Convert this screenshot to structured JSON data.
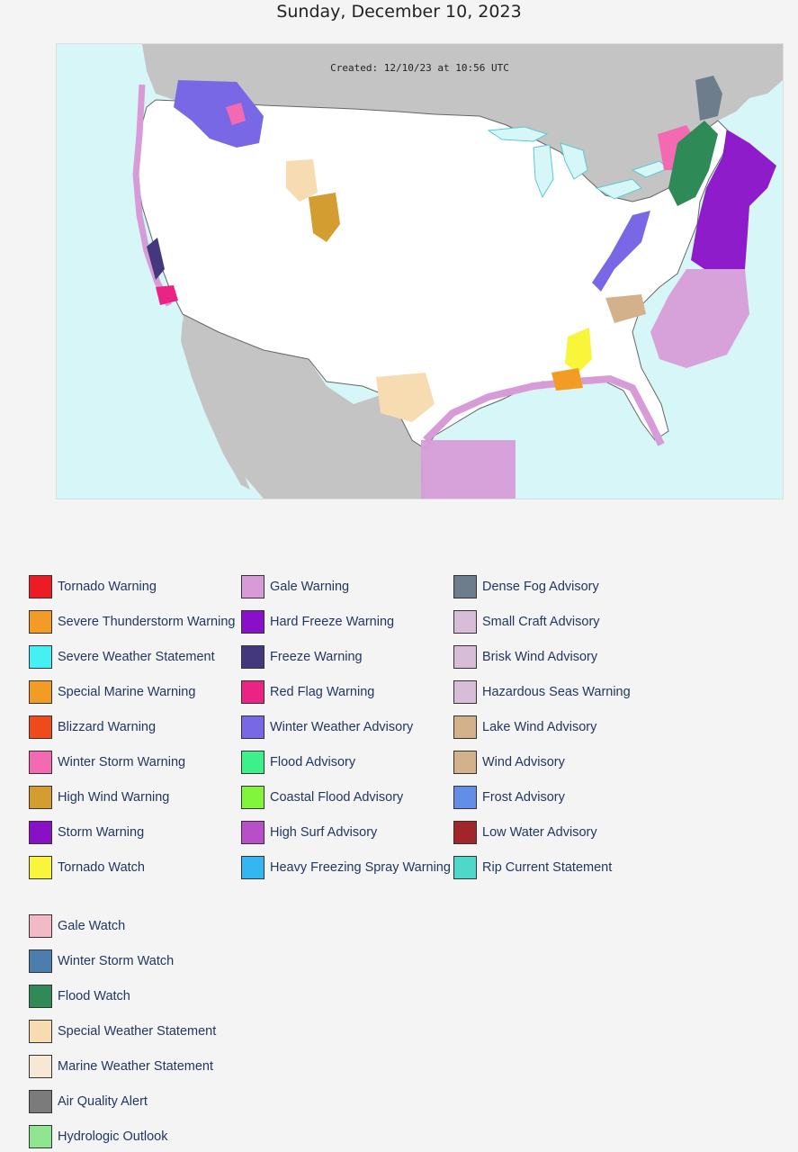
{
  "page": {
    "title": "Sunday, December 10, 2023",
    "map_created": "Created: 12/10/23 at 10:56 UTC"
  },
  "colors": {
    "ocean": "#d7f6f8",
    "land_us": "#ffffff",
    "land_other": "#c4c4c4",
    "zone_lines": "#5cc9d0"
  },
  "legend": {
    "columns": [
      [
        {
          "label": "Tornado Warning",
          "color": "#ed1c24"
        },
        {
          "label": "Severe Thunderstorm Warning",
          "color": "#f39c25"
        },
        {
          "label": "Severe Weather Statement",
          "color": "#44f0f3"
        },
        {
          "label": "Special Marine Warning",
          "color": "#f39c25"
        },
        {
          "label": "Blizzard Warning",
          "color": "#ee4a1c"
        },
        {
          "label": "Winter Storm Warning",
          "color": "#f36ab3"
        },
        {
          "label": "High Wind Warning",
          "color": "#d39d32"
        },
        {
          "label": "Storm Warning",
          "color": "#8a10c8"
        },
        {
          "label": "Tornado Watch",
          "color": "#f8f53a"
        }
      ],
      [
        {
          "label": "Gale Warning",
          "color": "#d79cd8"
        },
        {
          "label": "Hard Freeze Warning",
          "color": "#8a0fc8"
        },
        {
          "label": "Freeze Warning",
          "color": "#43377e"
        },
        {
          "label": "Red Flag Warning",
          "color": "#eb2384"
        },
        {
          "label": "Winter Weather Advisory",
          "color": "#7868e6"
        },
        {
          "label": "Flood Advisory",
          "color": "#3df08a"
        },
        {
          "label": "Coastal Flood Advisory",
          "color": "#80f53b"
        },
        {
          "label": "High Surf Advisory",
          "color": "#b94fc8"
        },
        {
          "label": "Heavy Freezing Spray Warning",
          "color": "#34b6f0"
        }
      ],
      [
        {
          "label": "Dense Fog Advisory",
          "color": "#6d7d8c"
        },
        {
          "label": "Small Craft Advisory",
          "color": "#d8bdd9"
        },
        {
          "label": "Brisk Wind Advisory",
          "color": "#d8bdd9"
        },
        {
          "label": "Hazardous Seas Warning",
          "color": "#d8bdd9"
        },
        {
          "label": "Lake Wind Advisory",
          "color": "#d3b28b"
        },
        {
          "label": "Wind Advisory",
          "color": "#d3b28b"
        },
        {
          "label": "Frost Advisory",
          "color": "#628ee8"
        },
        {
          "label": "Low Water Advisory",
          "color": "#a2252a"
        },
        {
          "label": "Rip Current Statement",
          "color": "#4fd7c9"
        }
      ]
    ],
    "extra": [
      {
        "label": "Gale Watch",
        "color": "#f3b9c6"
      },
      {
        "label": "Winter Storm Watch",
        "color": "#4b7eaf"
      },
      {
        "label": "Flood Watch",
        "color": "#2e8a57"
      },
      {
        "label": "Special Weather Statement",
        "color": "#f6dcb0"
      },
      {
        "label": "Marine Weather Statement",
        "color": "#f7e8d5"
      },
      {
        "label": "Air Quality Alert",
        "color": "#7b7b7b"
      },
      {
        "label": "Hydrologic Outlook",
        "color": "#8ee78e"
      }
    ]
  }
}
